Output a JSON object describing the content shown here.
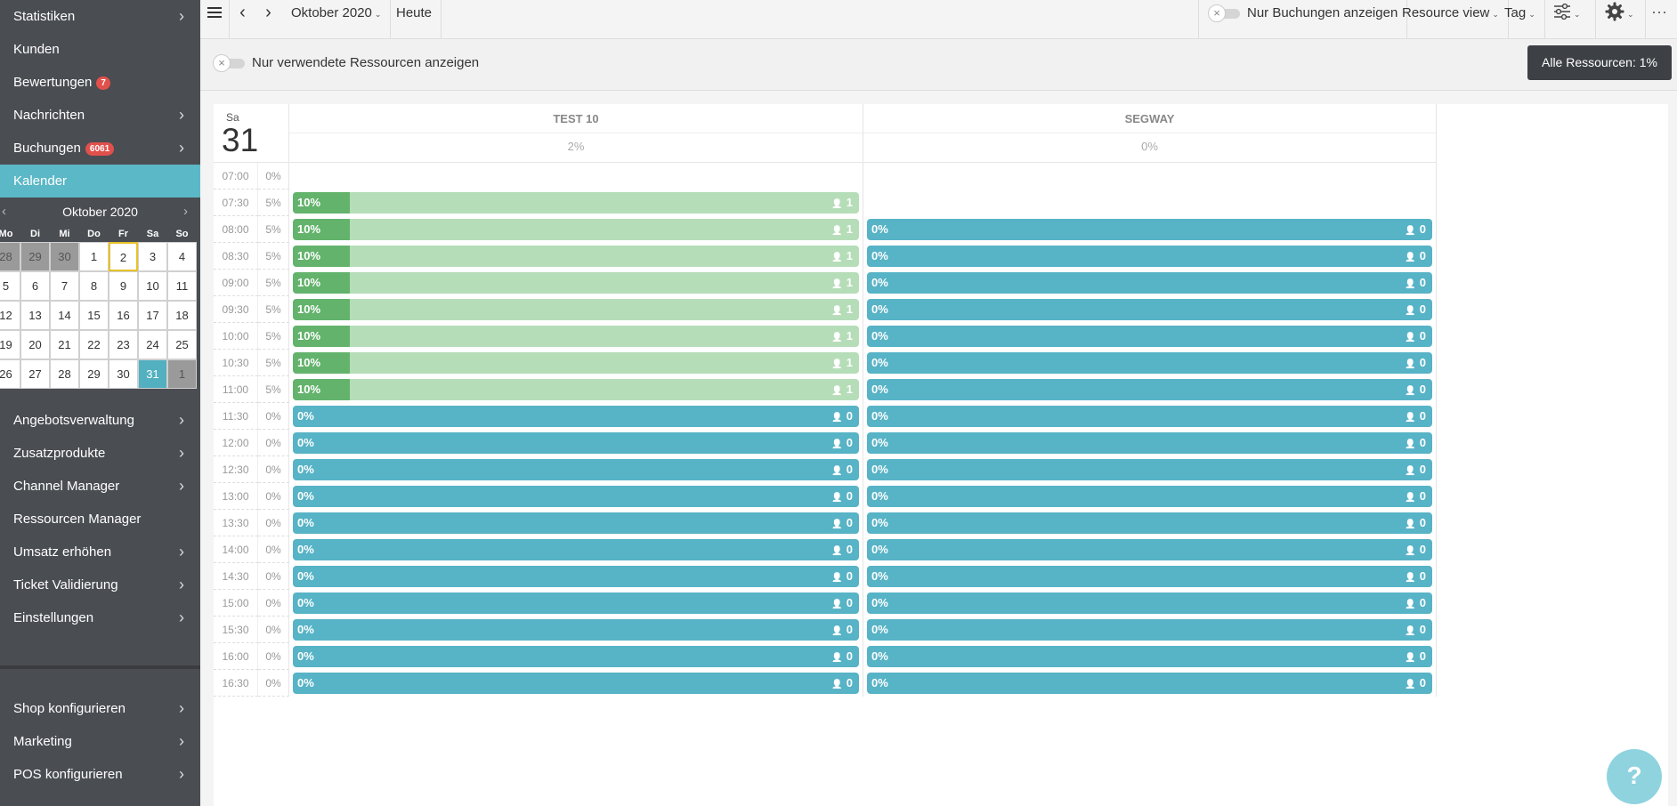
{
  "sidebar": {
    "top_items": [
      {
        "label": "Statistiken",
        "chevron": true,
        "badge": ""
      },
      {
        "label": "Kunden",
        "chevron": false,
        "badge": ""
      },
      {
        "label": "Bewertungen",
        "chevron": false,
        "badge": "7"
      },
      {
        "label": "Nachrichten",
        "chevron": true,
        "badge": ""
      },
      {
        "label": "Buchungen",
        "chevron": true,
        "badge": "6061"
      },
      {
        "label": "Kalender",
        "chevron": false,
        "badge": "",
        "active": true
      }
    ],
    "mid_items": [
      {
        "label": "Angebotsverwaltung",
        "chevron": true
      },
      {
        "label": "Zusatzprodukte",
        "chevron": true
      },
      {
        "label": "Channel Manager",
        "chevron": true
      },
      {
        "label": "Ressourcen Manager",
        "chevron": false
      },
      {
        "label": "Umsatz erhöhen",
        "chevron": true
      },
      {
        "label": "Ticket Validierung",
        "chevron": true
      },
      {
        "label": "Einstellungen",
        "chevron": true
      }
    ],
    "bottom_items": [
      {
        "label": "Shop konfigurieren",
        "chevron": true
      },
      {
        "label": "Marketing",
        "chevron": true
      },
      {
        "label": "POS konfigurieren",
        "chevron": true
      }
    ],
    "chevron_glyph": "›"
  },
  "minical": {
    "month_label": "Oktober 2020",
    "prev": "‹",
    "next": "›",
    "weekdays": [
      "Mo",
      "Di",
      "Mi",
      "Do",
      "Fr",
      "Sa",
      "So"
    ],
    "days": [
      {
        "d": "28",
        "s": "other"
      },
      {
        "d": "29",
        "s": "other"
      },
      {
        "d": "30",
        "s": "other"
      },
      {
        "d": "1",
        "s": ""
      },
      {
        "d": "2",
        "s": "today"
      },
      {
        "d": "3",
        "s": ""
      },
      {
        "d": "4",
        "s": ""
      },
      {
        "d": "5",
        "s": ""
      },
      {
        "d": "6",
        "s": ""
      },
      {
        "d": "7",
        "s": ""
      },
      {
        "d": "8",
        "s": ""
      },
      {
        "d": "9",
        "s": ""
      },
      {
        "d": "10",
        "s": ""
      },
      {
        "d": "11",
        "s": ""
      },
      {
        "d": "12",
        "s": ""
      },
      {
        "d": "13",
        "s": ""
      },
      {
        "d": "14",
        "s": ""
      },
      {
        "d": "15",
        "s": ""
      },
      {
        "d": "16",
        "s": ""
      },
      {
        "d": "17",
        "s": ""
      },
      {
        "d": "18",
        "s": ""
      },
      {
        "d": "19",
        "s": ""
      },
      {
        "d": "20",
        "s": ""
      },
      {
        "d": "21",
        "s": ""
      },
      {
        "d": "22",
        "s": ""
      },
      {
        "d": "23",
        "s": ""
      },
      {
        "d": "24",
        "s": ""
      },
      {
        "d": "25",
        "s": ""
      },
      {
        "d": "26",
        "s": ""
      },
      {
        "d": "27",
        "s": ""
      },
      {
        "d": "28",
        "s": ""
      },
      {
        "d": "29",
        "s": ""
      },
      {
        "d": "30",
        "s": ""
      },
      {
        "d": "31",
        "s": "selected"
      },
      {
        "d": "1",
        "s": "other"
      }
    ]
  },
  "toolbar": {
    "prev": "‹",
    "next": "›",
    "month": "Oktober 2020",
    "today": "Heute",
    "bookings_toggle_label": "Nur Buchungen anzeigen",
    "view": "Resource view",
    "period": "Tag",
    "caret": "⌄",
    "more": "⋯"
  },
  "filter": {
    "used_resources_label": "Nur verwendete Ressourcen anzeigen",
    "all_resources": "Alle Ressourcen: 1%"
  },
  "calendar": {
    "weekday": "Sa",
    "day": "31",
    "resources": [
      {
        "name": "TEST 10",
        "pct": "2%"
      },
      {
        "name": "SEGWAY",
        "pct": "0%"
      }
    ],
    "rows": [
      {
        "time": "07:00",
        "pct": "0%",
        "slots": [
          null,
          null
        ]
      },
      {
        "time": "07:30",
        "pct": "5%",
        "slots": [
          {
            "label": "10%",
            "fill": 0.1,
            "count": "1"
          },
          null
        ]
      },
      {
        "time": "08:00",
        "pct": "5%",
        "slots": [
          {
            "label": "10%",
            "fill": 0.1,
            "count": "1"
          },
          {
            "label": "0%",
            "fill": 0,
            "count": "0"
          }
        ]
      },
      {
        "time": "08:30",
        "pct": "5%",
        "slots": [
          {
            "label": "10%",
            "fill": 0.1,
            "count": "1"
          },
          {
            "label": "0%",
            "fill": 0,
            "count": "0"
          }
        ]
      },
      {
        "time": "09:00",
        "pct": "5%",
        "slots": [
          {
            "label": "10%",
            "fill": 0.1,
            "count": "1"
          },
          {
            "label": "0%",
            "fill": 0,
            "count": "0"
          }
        ]
      },
      {
        "time": "09:30",
        "pct": "5%",
        "slots": [
          {
            "label": "10%",
            "fill": 0.1,
            "count": "1"
          },
          {
            "label": "0%",
            "fill": 0,
            "count": "0"
          }
        ]
      },
      {
        "time": "10:00",
        "pct": "5%",
        "slots": [
          {
            "label": "10%",
            "fill": 0.1,
            "count": "1"
          },
          {
            "label": "0%",
            "fill": 0,
            "count": "0"
          }
        ]
      },
      {
        "time": "10:30",
        "pct": "5%",
        "slots": [
          {
            "label": "10%",
            "fill": 0.1,
            "count": "1"
          },
          {
            "label": "0%",
            "fill": 0,
            "count": "0"
          }
        ]
      },
      {
        "time": "11:00",
        "pct": "5%",
        "slots": [
          {
            "label": "10%",
            "fill": 0.1,
            "count": "1"
          },
          {
            "label": "0%",
            "fill": 0,
            "count": "0"
          }
        ]
      },
      {
        "time": "11:30",
        "pct": "0%",
        "slots": [
          {
            "label": "0%",
            "fill": 0,
            "count": "0"
          },
          {
            "label": "0%",
            "fill": 0,
            "count": "0"
          }
        ]
      },
      {
        "time": "12:00",
        "pct": "0%",
        "slots": [
          {
            "label": "0%",
            "fill": 0,
            "count": "0"
          },
          {
            "label": "0%",
            "fill": 0,
            "count": "0"
          }
        ]
      },
      {
        "time": "12:30",
        "pct": "0%",
        "slots": [
          {
            "label": "0%",
            "fill": 0,
            "count": "0"
          },
          {
            "label": "0%",
            "fill": 0,
            "count": "0"
          }
        ]
      },
      {
        "time": "13:00",
        "pct": "0%",
        "slots": [
          {
            "label": "0%",
            "fill": 0,
            "count": "0"
          },
          {
            "label": "0%",
            "fill": 0,
            "count": "0"
          }
        ]
      },
      {
        "time": "13:30",
        "pct": "0%",
        "slots": [
          {
            "label": "0%",
            "fill": 0,
            "count": "0"
          },
          {
            "label": "0%",
            "fill": 0,
            "count": "0"
          }
        ]
      },
      {
        "time": "14:00",
        "pct": "0%",
        "slots": [
          {
            "label": "0%",
            "fill": 0,
            "count": "0"
          },
          {
            "label": "0%",
            "fill": 0,
            "count": "0"
          }
        ]
      },
      {
        "time": "14:30",
        "pct": "0%",
        "slots": [
          {
            "label": "0%",
            "fill": 0,
            "count": "0"
          },
          {
            "label": "0%",
            "fill": 0,
            "count": "0"
          }
        ]
      },
      {
        "time": "15:00",
        "pct": "0%",
        "slots": [
          {
            "label": "0%",
            "fill": 0,
            "count": "0"
          },
          {
            "label": "0%",
            "fill": 0,
            "count": "0"
          }
        ]
      },
      {
        "time": "15:30",
        "pct": "0%",
        "slots": [
          {
            "label": "0%",
            "fill": 0,
            "count": "0"
          },
          {
            "label": "0%",
            "fill": 0,
            "count": "0"
          }
        ]
      },
      {
        "time": "16:00",
        "pct": "0%",
        "slots": [
          {
            "label": "0%",
            "fill": 0,
            "count": "0"
          },
          {
            "label": "0%",
            "fill": 0,
            "count": "0"
          }
        ]
      },
      {
        "time": "16:30",
        "pct": "0%",
        "slots": [
          {
            "label": "0%",
            "fill": 0,
            "count": "0"
          },
          {
            "label": "0%",
            "fill": 0,
            "count": "0"
          }
        ]
      }
    ]
  },
  "help": {
    "label": "?"
  },
  "colors": {
    "sidebar": "#4a4d52",
    "active": "#5bb8c6",
    "booked": "#63b36c",
    "booked_bg": "#b5ddb8",
    "free": "#57b3c6",
    "badge": "#e2504c"
  }
}
